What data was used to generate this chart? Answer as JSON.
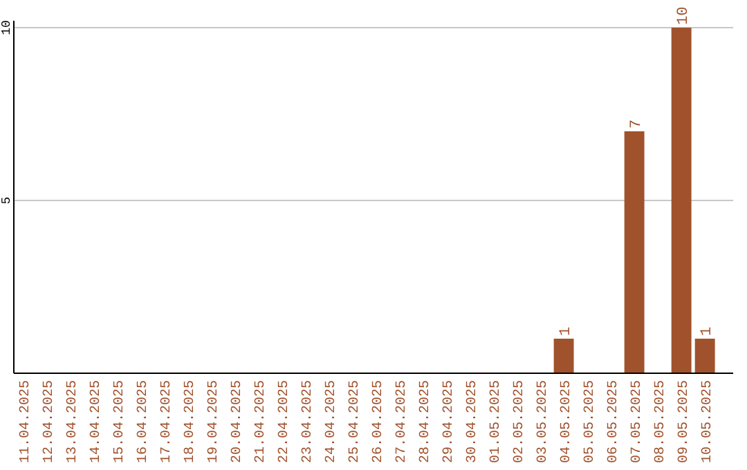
{
  "chart_data": {
    "type": "bar",
    "categories": [
      "11.04.2025",
      "12.04.2025",
      "13.04.2025",
      "14.04.2025",
      "15.04.2025",
      "16.04.2025",
      "17.04.2025",
      "18.04.2025",
      "19.04.2025",
      "20.04.2025",
      "21.04.2025",
      "22.04.2025",
      "23.04.2025",
      "24.04.2025",
      "25.04.2025",
      "26.04.2025",
      "27.04.2025",
      "28.04.2025",
      "29.04.2025",
      "30.04.2025",
      "01.05.2025",
      "02.05.2025",
      "03.05.2025",
      "04.05.2025",
      "05.05.2025",
      "06.05.2025",
      "07.05.2025",
      "08.05.2025",
      "09.05.2025",
      "10.05.2025"
    ],
    "values": [
      0,
      0,
      0,
      0,
      0,
      0,
      0,
      0,
      0,
      0,
      0,
      0,
      0,
      0,
      0,
      0,
      0,
      0,
      0,
      0,
      0,
      0,
      0,
      1,
      0,
      0,
      7,
      0,
      10,
      1
    ],
    "value_labels": [
      null,
      null,
      null,
      null,
      null,
      null,
      null,
      null,
      null,
      null,
      null,
      null,
      null,
      null,
      null,
      null,
      null,
      null,
      null,
      null,
      null,
      null,
      null,
      "1",
      null,
      null,
      "7",
      null,
      "10",
      "1"
    ],
    "color": "#a0522d",
    "ylim": [
      0,
      10
    ],
    "yticks": [
      5,
      10
    ],
    "grid": "y"
  }
}
